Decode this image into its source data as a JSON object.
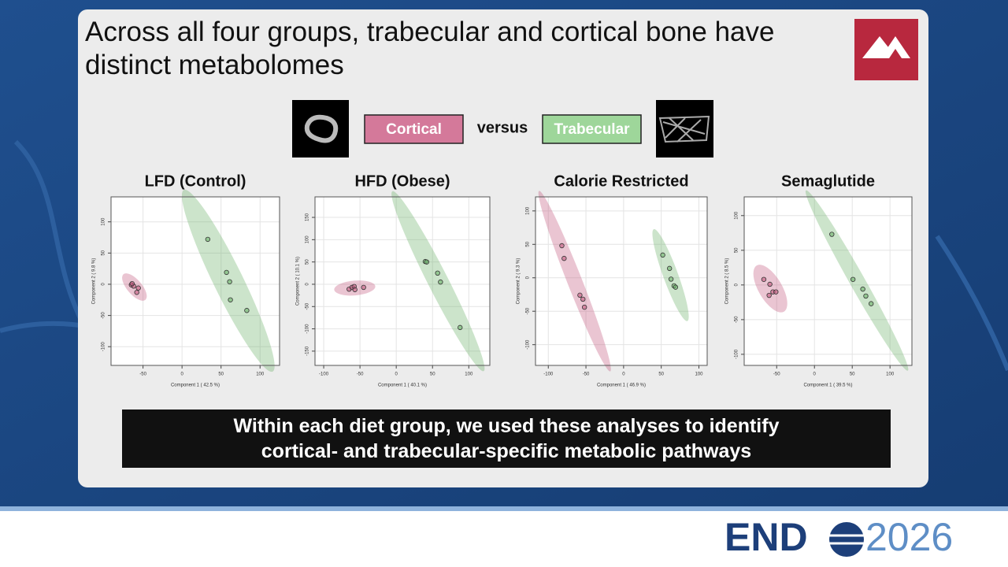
{
  "slide": {
    "title": "Across all four groups, trabecular and cortical bone have distinct metabolomes",
    "legend": [
      {
        "name": "Cortical",
        "color": "#d4799a"
      },
      {
        "name": "Trabecular",
        "color": "#9ed69a"
      }
    ],
    "versus": "versus",
    "banner": [
      "Within each diet group, we used these analyses to identify",
      "cortical- and trabecular-specific metabolic pathways"
    ],
    "brand": [
      "END",
      "2026"
    ]
  },
  "chart_data": [
    {
      "type": "scatter",
      "title": "LFD (Control)",
      "x_label": "Component 1 ( 42.5 %)",
      "y_label": "Component 2 ( 9.8 %)",
      "xlim": [
        -91,
        125
      ],
      "ylim": [
        -130,
        140
      ],
      "xticks": [
        -50,
        0,
        50,
        100
      ],
      "yticks": [
        -100,
        -50,
        0,
        50,
        100
      ],
      "grid": true,
      "series": [
        {
          "color": "#c25a7e",
          "x": [
            -65,
            -62,
            -56,
            -58,
            -64
          ],
          "values": [
            -1,
            -3,
            -6,
            -13,
            1
          ]
        },
        {
          "color": "#6cb26a",
          "x": [
            33,
            57,
            61,
            62,
            83
          ],
          "values": [
            72,
            19,
            4,
            -25,
            -42
          ]
        }
      ]
    },
    {
      "type": "scatter",
      "title": "HFD (Obese)",
      "x_label": "Component 1 ( 40.1 %)",
      "y_label": "Component 2 ( 10.1 %)",
      "xlim": [
        -112,
        129
      ],
      "ylim": [
        -182,
        196
      ],
      "xticks": [
        -100,
        -50,
        0,
        50,
        100
      ],
      "yticks": [
        -150,
        -100,
        -50,
        0,
        50,
        100,
        150
      ],
      "grid": true,
      "series": [
        {
          "color": "#c25a7e",
          "x": [
            -65,
            -61,
            -58,
            -57,
            -45
          ],
          "values": [
            -11,
            -7,
            -5,
            -12,
            -7
          ]
        },
        {
          "color": "#6cb26a",
          "x": [
            40,
            42,
            57,
            61,
            88
          ],
          "values": [
            51,
            50,
            25,
            5,
            -97
          ]
        }
      ]
    },
    {
      "type": "scatter",
      "title": "Calorie Restricted",
      "x_label": "Component 1 ( 46.9 %)",
      "y_label": "Component 2 ( 9.3 %)",
      "xlim": [
        -117,
        111
      ],
      "ylim": [
        -131,
        121
      ],
      "xticks": [
        -100,
        -50,
        0,
        50,
        100
      ],
      "yticks": [
        -100,
        -50,
        0,
        50,
        100
      ],
      "grid": true,
      "series": [
        {
          "color": "#c25a7e",
          "x": [
            -82,
            -79,
            -58,
            -54,
            -52
          ],
          "values": [
            48,
            29,
            -26,
            -32,
            -44
          ]
        },
        {
          "color": "#6cb26a",
          "x": [
            52,
            61,
            63,
            67,
            69
          ],
          "values": [
            34,
            14,
            -2,
            -12,
            -14
          ]
        }
      ]
    },
    {
      "type": "scatter",
      "title": "Semaglutide",
      "x_label": "Component 1 ( 39.5 %)",
      "y_label": "Component 2 ( 8.5 %)",
      "xlim": [
        -93,
        129
      ],
      "ylim": [
        -116,
        127
      ],
      "xticks": [
        -50,
        0,
        50,
        100
      ],
      "yticks": [
        -100,
        -50,
        0,
        50,
        100
      ],
      "grid": true,
      "series": [
        {
          "color": "#c25a7e",
          "x": [
            -67,
            -59,
            -60,
            -55,
            -51
          ],
          "values": [
            8,
            1,
            -15,
            -10,
            -10
          ]
        },
        {
          "color": "#6cb26a",
          "x": [
            23,
            51,
            64,
            68,
            75
          ],
          "values": [
            73,
            8,
            -6,
            -16,
            -27
          ]
        }
      ]
    }
  ]
}
